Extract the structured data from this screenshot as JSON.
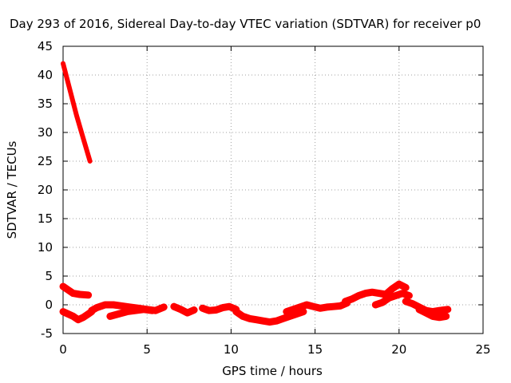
{
  "chart_data": {
    "type": "scatter",
    "title": "Day 293 of 2016, Sidereal Day-to-day VTEC variation (SDTVAR) for receiver p0",
    "xlabel": "GPS time / hours",
    "ylabel": "SDTVAR / TECUs",
    "xlim": [
      0,
      25
    ],
    "ylim": [
      -5,
      45
    ],
    "xticks": [
      "0",
      "5",
      "10",
      "15",
      "20",
      "25"
    ],
    "yticks": [
      "-5",
      "0",
      "5",
      "10",
      "15",
      "20",
      "25",
      "30",
      "35",
      "40",
      "45"
    ],
    "grid": true,
    "legend": "none",
    "color": "#ff0000",
    "series": [
      {
        "x": [
          0.0,
          0.4,
          0.8,
          1.2,
          1.6
        ],
        "y": [
          42,
          37.5,
          33,
          29,
          25
        ]
      },
      {
        "x": [
          0.0,
          0.3,
          0.6,
          1.0,
          1.5
        ],
        "y": [
          3.2,
          2.6,
          2.0,
          1.8,
          1.7
        ]
      },
      {
        "x": [
          0.0,
          0.3,
          0.6,
          0.9,
          1.2,
          1.5,
          1.7
        ],
        "y": [
          -1.2,
          -1.6,
          -2.0,
          -2.6,
          -2.2,
          -1.6,
          -1.2
        ]
      },
      {
        "x": [
          1.7,
          2.0,
          2.5,
          3.0,
          3.5,
          4.0,
          4.5,
          5.0,
          5.5,
          6.0
        ],
        "y": [
          -1.0,
          -0.5,
          0.0,
          0.0,
          -0.2,
          -0.4,
          -0.6,
          -0.8,
          -1.0,
          -0.4
        ]
      },
      {
        "x": [
          2.8,
          3.3,
          3.8,
          4.3,
          4.8,
          5.3
        ],
        "y": [
          -2.0,
          -1.6,
          -1.2,
          -1.0,
          -0.8,
          -1.0
        ]
      },
      {
        "x": [
          6.6,
          7.0,
          7.4,
          7.8
        ],
        "y": [
          -0.3,
          -0.8,
          -1.4,
          -0.9
        ]
      },
      {
        "x": [
          8.3,
          8.7,
          9.1,
          9.5,
          9.9,
          10.3
        ],
        "y": [
          -0.6,
          -1.0,
          -0.9,
          -0.5,
          -0.3,
          -0.8
        ]
      },
      {
        "x": [
          10.3,
          10.7,
          11.1,
          11.5,
          11.9,
          12.3,
          12.7,
          13.1,
          13.5,
          13.9,
          14.3
        ],
        "y": [
          -1.2,
          -2.0,
          -2.4,
          -2.6,
          -2.8,
          -3.0,
          -2.8,
          -2.4,
          -2.0,
          -1.6,
          -1.2
        ]
      },
      {
        "x": [
          13.3,
          13.7,
          14.1,
          14.5,
          14.9,
          15.3,
          15.7,
          16.1,
          16.5,
          16.9
        ],
        "y": [
          -1.2,
          -0.8,
          -0.4,
          0.0,
          -0.3,
          -0.6,
          -0.4,
          -0.3,
          -0.2,
          0.3
        ]
      },
      {
        "x": [
          16.8,
          17.2,
          17.6,
          18.0,
          18.4,
          18.8,
          19.2,
          19.6,
          20.0,
          20.4
        ],
        "y": [
          0.6,
          1.0,
          1.6,
          2.0,
          2.2,
          2.0,
          1.8,
          2.8,
          3.6,
          3.0
        ]
      },
      {
        "x": [
          18.6,
          19.0,
          19.4,
          19.8,
          20.2,
          20.6
        ],
        "y": [
          0.0,
          0.4,
          1.2,
          1.6,
          2.0,
          1.6
        ]
      },
      {
        "x": [
          20.4,
          20.8,
          21.2,
          21.6,
          22.0,
          22.4,
          22.9
        ],
        "y": [
          0.6,
          0.2,
          -0.4,
          -1.0,
          -1.2,
          -1.0,
          -0.8
        ]
      },
      {
        "x": [
          21.2,
          21.6,
          22.0,
          22.4,
          22.8
        ],
        "y": [
          -0.8,
          -1.4,
          -2.0,
          -2.2,
          -2.0
        ]
      }
    ]
  }
}
